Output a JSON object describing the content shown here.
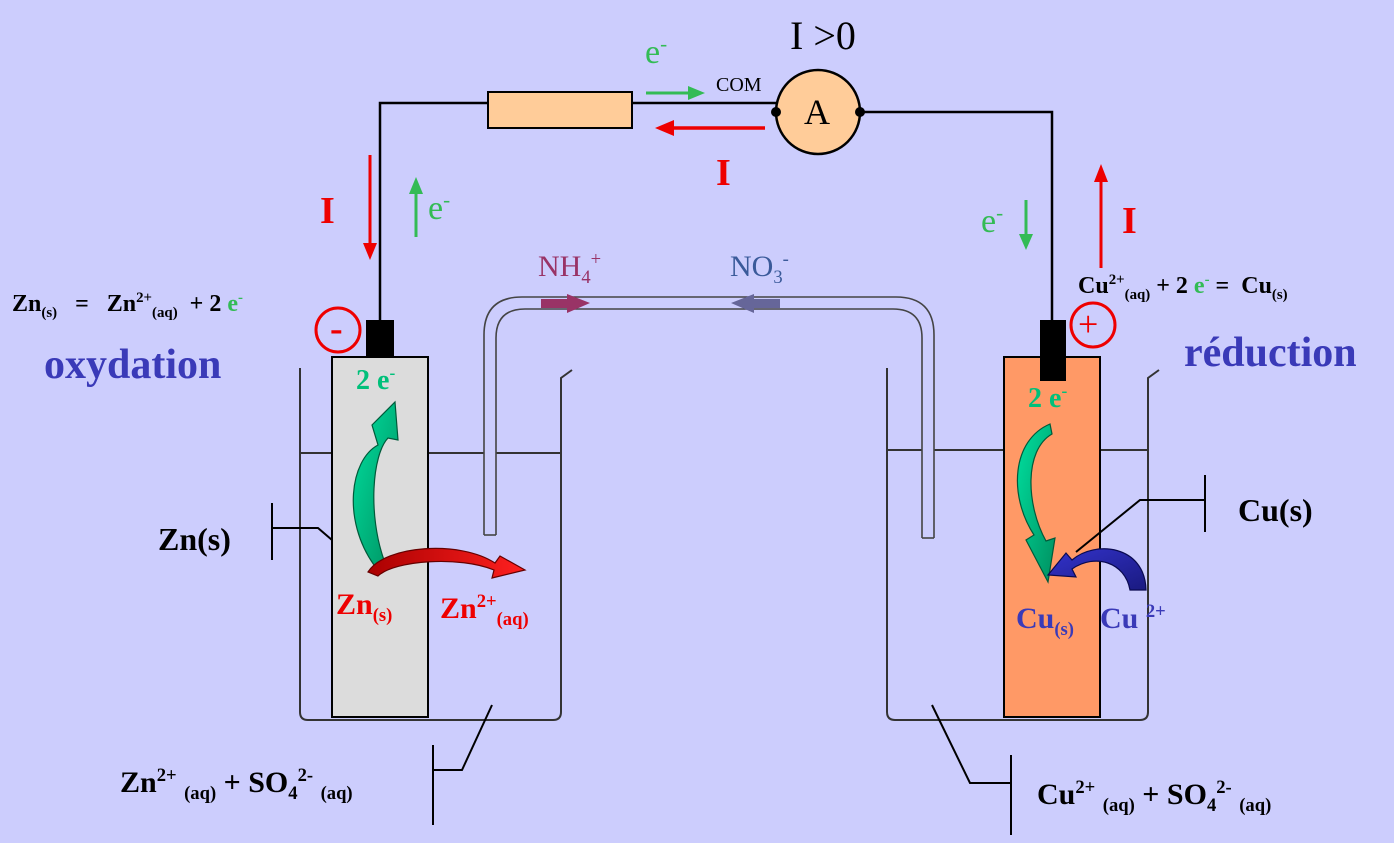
{
  "meter": {
    "label": "A",
    "com": "COM",
    "reading": "I >0"
  },
  "electron": {
    "symbol": "e",
    "charge": "-"
  },
  "current": {
    "symbol": "I"
  },
  "bridge_ions": {
    "cation": {
      "base": "NH",
      "sub": "4",
      "sup": "+"
    },
    "anion": {
      "base": "NO",
      "sub": "3",
      "sup": "-"
    }
  },
  "anode": {
    "sign": "-",
    "process": "oxydation",
    "eq": {
      "r1": "Zn",
      "r1_state": "(s)",
      "eq_sign": "=",
      "p1": "Zn",
      "p1_charge": "2+",
      "p1_state": "(aq)",
      "plus": "+ 2",
      "e": "e",
      "e_charge": "-"
    },
    "electrode_label": "Zn(s)",
    "electrons_label": "2 e",
    "electrons_charge": "-",
    "metal": {
      "base": "Zn",
      "state": "(s)"
    },
    "ion": {
      "base": "Zn",
      "charge": "2+",
      "state": "(aq)"
    },
    "solution": {
      "ion1": "Zn",
      "ion1_charge": "2+",
      "ion1_state": "(aq)",
      "plus": "+",
      "ion2": "SO",
      "ion2_sub": "4",
      "ion2_charge": "2-",
      "ion2_state": "(aq)"
    }
  },
  "cathode": {
    "sign": "+",
    "process": "réduction",
    "eq": {
      "r1": "Cu",
      "r1_charge": "2+",
      "r1_state": "(aq)",
      "plus": "+ 2",
      "e": "e",
      "e_charge": "-",
      "eq_sign": "=",
      "p1": "Cu",
      "p1_state": "(s)"
    },
    "electrode_label": "Cu(s)",
    "electrons_label": "2 e",
    "electrons_charge": "-",
    "metal": {
      "base": "Cu",
      "state": "(s)"
    },
    "ion": {
      "base": "Cu",
      "charge": "2+"
    },
    "solution": {
      "ion1": "Cu",
      "ion1_charge": "2+",
      "ion1_state": "(aq)",
      "plus": "+",
      "ion2": "SO",
      "ion2_sub": "4",
      "ion2_charge": "2-",
      "ion2_state": "(aq)"
    }
  },
  "colors": {
    "background": "#cccdfd",
    "zinc": "#dcdcdc",
    "copper": "#ff9966",
    "resistor": "#ffcc99",
    "current": "#ee0000",
    "electron": "#33bb55",
    "nh4": "#993366",
    "no3": "#666699",
    "label_blue": "#3a3ab8"
  }
}
